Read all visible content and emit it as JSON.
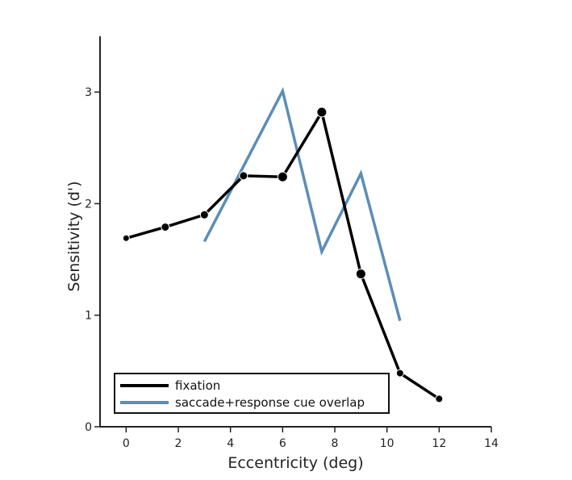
{
  "chart_data": {
    "type": "line",
    "xlabel": "Eccentricity (deg)",
    "ylabel": "Sensitivity (d')",
    "xlim": [
      -1,
      14
    ],
    "ylim": [
      0,
      3.5
    ],
    "x_ticks": [
      0,
      2,
      4,
      6,
      8,
      10,
      12,
      14
    ],
    "y_ticks": [
      0,
      1,
      2,
      3
    ],
    "grid": false,
    "legend_position": "lower-left",
    "series": [
      {
        "name": "fixation",
        "color": "#000000",
        "markers": true,
        "x": [
          0,
          1.5,
          3,
          4.5,
          6,
          7.5,
          9,
          10.5,
          12
        ],
        "y": [
          1.69,
          1.79,
          1.9,
          2.25,
          2.24,
          2.82,
          1.37,
          0.48,
          0.25
        ],
        "marker_sizes": [
          4,
          5,
          5,
          5,
          6,
          6,
          6,
          4.5,
          4.5
        ]
      },
      {
        "name": "saccade+response cue overlap",
        "color": "#5b8db8",
        "markers": false,
        "x": [
          3,
          6,
          7.5,
          9,
          10.5
        ],
        "y": [
          1.66,
          3.01,
          1.57,
          2.27,
          0.95
        ]
      }
    ]
  }
}
